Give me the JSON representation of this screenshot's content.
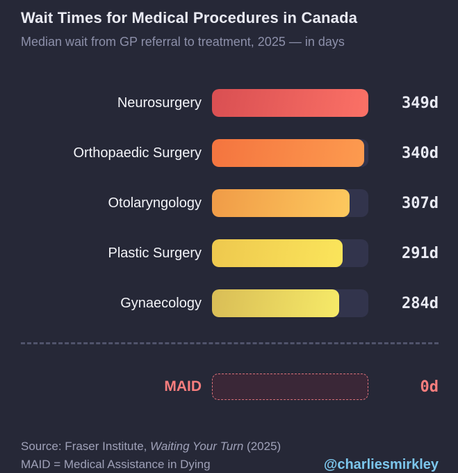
{
  "header": {
    "title": "Wait Times for Medical Procedures in Canada",
    "subtitle": "Median wait from GP referral to treatment, 2025 — in days"
  },
  "chart_data": {
    "type": "bar",
    "orientation": "horizontal",
    "title": "Wait Times for Medical Procedures in Canada",
    "subtitle": "Median wait from GP referral to treatment, 2025 — in days",
    "unit": "days",
    "value_suffix": "d",
    "xlim": [
      0,
      349
    ],
    "grid": false,
    "legend": false,
    "categories": [
      "Neurosurgery",
      "Orthopaedic Surgery",
      "Otolaryngology",
      "Plastic Surgery",
      "Gynaecology"
    ],
    "values": [
      349,
      340,
      307,
      291,
      284
    ],
    "value_labels": [
      "349d",
      "340d",
      "307d",
      "291d",
      "284d"
    ],
    "bar_gradients": [
      [
        "#d94f52",
        "#fb7166"
      ],
      [
        "#f4743f",
        "#fd9b4f"
      ],
      [
        "#f09b47",
        "#fdc95e"
      ],
      [
        "#eec84e",
        "#fbe55b"
      ],
      [
        "#d9bd56",
        "#f6ea68"
      ]
    ],
    "comparison_row": {
      "label": "MAID",
      "value": 0,
      "value_label": "0d"
    }
  },
  "footer": {
    "source_prefix": "Source: Fraser Institute, ",
    "source_work": "Waiting Your Turn",
    "source_suffix": " (2025)",
    "note": "MAID = Medical Assistance in Dying",
    "handle": "@charliesmirkley"
  },
  "colors": {
    "background": "#262837",
    "track": "#32344c",
    "title_text": "#e9eaf3",
    "subtitle_text": "#8d90aa",
    "label_text": "#f3f4f8",
    "value_text": "#e9eaf3",
    "maid_accent": "#f87e7e",
    "maid_fill": "#3a2737",
    "maid_border": "#da7079",
    "divider": "#50536b",
    "footer_text": "#9fa1b8",
    "handle_blue": "#7cc6ec"
  }
}
